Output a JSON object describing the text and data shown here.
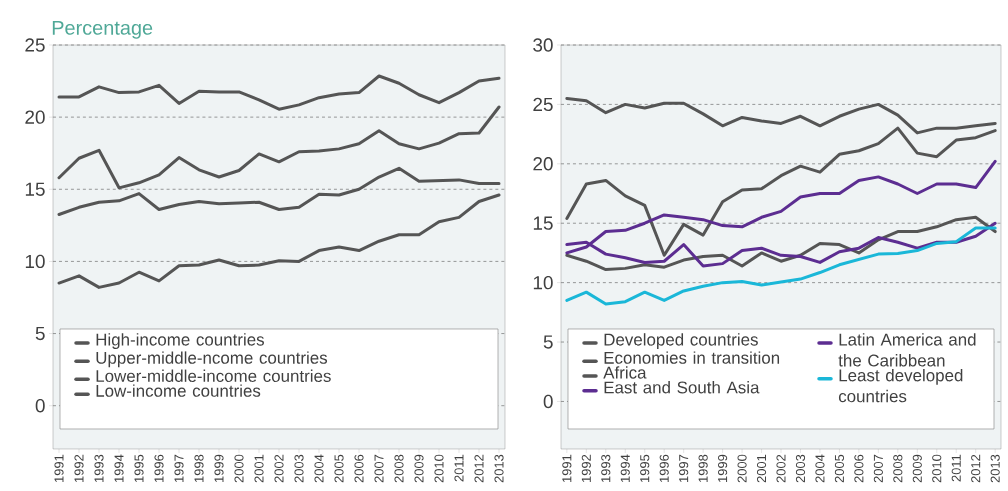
{
  "chart_data": [
    {
      "type": "line",
      "title": "Percentage",
      "categories": [
        "1991",
        "1992",
        "1993",
        "1994",
        "1995",
        "1996",
        "1997",
        "1998",
        "1999",
        "2000",
        "2001",
        "2002",
        "2003",
        "2004",
        "2005",
        "2006",
        "2007",
        "2008",
        "2009",
        "2010",
        "2011",
        "2012",
        "2013"
      ],
      "series": [
        {
          "name": "High-income countries",
          "color": "#555555",
          "values": [
            21.4,
            21.4,
            22.1,
            21.7,
            21.75,
            22.2,
            20.95,
            21.8,
            21.75,
            21.75,
            21.2,
            20.55,
            20.85,
            21.35,
            21.6,
            21.7,
            22.85,
            22.35,
            21.55,
            21.0,
            21.7,
            22.5,
            22.7
          ]
        },
        {
          "name": "Upper-middle-ncome countries",
          "color": "#555555",
          "values": [
            15.8,
            17.15,
            17.7,
            15.1,
            15.45,
            16.0,
            17.2,
            16.35,
            15.85,
            16.3,
            17.45,
            16.9,
            17.6,
            17.65,
            17.8,
            18.15,
            19.05,
            18.15,
            17.8,
            18.2,
            18.85,
            18.9,
            20.7
          ]
        },
        {
          "name": "Lower-middle-income countries",
          "color": "#555555",
          "values": [
            13.25,
            13.75,
            14.1,
            14.2,
            14.7,
            13.6,
            13.95,
            14.15,
            14.0,
            14.05,
            14.1,
            13.6,
            13.75,
            14.65,
            14.6,
            15.0,
            15.85,
            16.45,
            15.55,
            15.6,
            15.65,
            15.4,
            15.4
          ]
        },
        {
          "name": "Low-income countries",
          "color": "#555555",
          "values": [
            8.5,
            9.0,
            8.2,
            8.5,
            9.25,
            8.65,
            9.7,
            9.75,
            10.1,
            9.7,
            9.75,
            10.05,
            10.0,
            10.75,
            11.0,
            10.75,
            11.4,
            11.85,
            11.85,
            12.75,
            13.05,
            14.15,
            14.6
          ]
        }
      ],
      "ylim": [
        -3,
        25
      ],
      "yticks": [
        0,
        5,
        10,
        15,
        20,
        25
      ],
      "grid": "y",
      "legend": "bottom"
    },
    {
      "type": "line",
      "categories": [
        "1991",
        "1992",
        "1993",
        "1994",
        "1995",
        "1996",
        "1997",
        "1998",
        "1999",
        "2000",
        "2001",
        "2002",
        "2003",
        "2004",
        "2005",
        "2006",
        "2007",
        "2008",
        "2009",
        "2010",
        "2011",
        "2012",
        "2013"
      ],
      "series": [
        {
          "name": "Developed countries",
          "color": "#555555",
          "values": [
            25.5,
            25.3,
            24.3,
            25.0,
            24.7,
            25.1,
            25.1,
            24.2,
            23.2,
            23.9,
            23.6,
            23.4,
            24.0,
            23.2,
            24.0,
            24.6,
            25.0,
            24.1,
            22.6,
            23.0,
            23.0,
            23.2,
            23.4
          ]
        },
        {
          "name": "Economies in transition",
          "color": "#555555",
          "values": [
            15.4,
            18.3,
            18.6,
            17.3,
            16.5,
            12.3,
            14.9,
            14.0,
            16.8,
            17.8,
            17.9,
            19.0,
            19.8,
            19.3,
            20.8,
            21.1,
            21.7,
            23.0,
            20.9,
            20.6,
            22.0,
            22.2,
            22.8
          ]
        },
        {
          "name": "Africa",
          "color": "#555555",
          "values": [
            12.3,
            11.8,
            11.1,
            11.2,
            11.5,
            11.3,
            11.9,
            12.2,
            12.3,
            11.4,
            12.5,
            11.8,
            12.3,
            13.3,
            13.2,
            12.5,
            13.6,
            14.3,
            14.3,
            14.7,
            15.3,
            15.5,
            14.3
          ]
        },
        {
          "name": "East and South Asia",
          "color": "#5c2d91",
          "values": [
            12.5,
            13.0,
            14.3,
            14.4,
            15.0,
            15.7,
            15.5,
            15.3,
            14.8,
            14.7,
            15.5,
            16.0,
            17.2,
            17.5,
            17.5,
            18.6,
            18.9,
            18.3,
            17.5,
            18.3,
            18.3,
            18.0,
            20.2
          ]
        },
        {
          "name": "Latin America and the Caribbean",
          "color": "#5c2d91",
          "values": [
            13.2,
            13.4,
            12.4,
            12.1,
            11.7,
            11.8,
            13.2,
            11.4,
            11.6,
            12.7,
            12.9,
            12.3,
            12.2,
            11.7,
            12.6,
            12.9,
            13.8,
            13.4,
            12.9,
            13.4,
            13.4,
            13.9,
            15.0
          ]
        },
        {
          "name": "Least developed countries",
          "color": "#1ab7d8",
          "values": [
            8.5,
            9.2,
            8.2,
            8.4,
            9.2,
            8.5,
            9.3,
            9.7,
            10.0,
            10.1,
            9.8,
            10.05,
            10.3,
            10.85,
            11.5,
            11.95,
            12.4,
            12.45,
            12.7,
            13.3,
            13.45,
            14.6,
            14.6
          ]
        }
      ],
      "ylim": [
        -4,
        30
      ],
      "yticks": [
        0,
        5,
        10,
        15,
        20,
        25,
        30
      ],
      "grid": "y",
      "legend": "bottom"
    }
  ]
}
